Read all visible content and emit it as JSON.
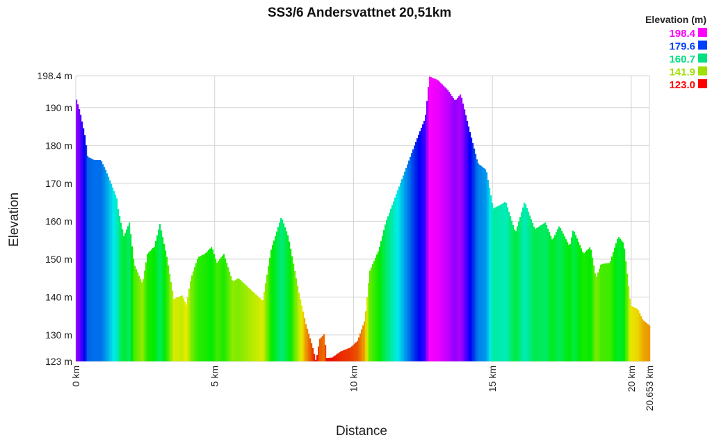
{
  "chart_data": {
    "type": "area",
    "title": "SS3/6 Andersvattnet 20,51km",
    "xlabel": "Distance",
    "ylabel": "Elevation",
    "xlim": [
      0,
      20.653
    ],
    "ylim": [
      123,
      198.4
    ],
    "grid": true,
    "x_ticks": [
      {
        "value": 0,
        "label": "0 km"
      },
      {
        "value": 5,
        "label": "5 km"
      },
      {
        "value": 10,
        "label": "10 km"
      },
      {
        "value": 15,
        "label": "15 km"
      },
      {
        "value": 20,
        "label": "20 km"
      },
      {
        "value": 20.653,
        "label": "20.653 km"
      }
    ],
    "y_ticks": [
      {
        "value": 123,
        "label": "123 m"
      },
      {
        "value": 130,
        "label": "130 m"
      },
      {
        "value": 140,
        "label": "140 m"
      },
      {
        "value": 150,
        "label": "150 m"
      },
      {
        "value": 160,
        "label": "160 m"
      },
      {
        "value": 170,
        "label": "170 m"
      },
      {
        "value": 180,
        "label": "180 m"
      },
      {
        "value": 190,
        "label": "190 m"
      },
      {
        "value": 198.4,
        "label": "198.4 m"
      }
    ],
    "legend": {
      "title": "Elevation (m)",
      "placement": "top-right",
      "entries": [
        {
          "label": "198.4",
          "value": 198.4,
          "color": "#ff00ff"
        },
        {
          "label": "179.6",
          "value": 179.6,
          "color": "#0040ff"
        },
        {
          "label": "160.7",
          "value": 160.7,
          "color": "#00e080"
        },
        {
          "label": "141.9",
          "value": 141.9,
          "color": "#a0e000"
        },
        {
          "label": "123.0",
          "value": 123.0,
          "color": "#ff0000"
        }
      ]
    },
    "color_scale": "elevation hue: red (low) → yellow → green → cyan → blue → magenta (high)",
    "x": [
      0,
      0.15,
      0.33,
      0.43,
      0.65,
      0.9,
      1.08,
      1.28,
      1.48,
      1.53,
      1.73,
      1.93,
      2.1,
      2.4,
      2.58,
      2.83,
      3.03,
      3.28,
      3.53,
      3.83,
      3.98,
      4.15,
      4.4,
      4.65,
      4.9,
      5.08,
      5.33,
      5.65,
      5.85,
      6.73,
      7.03,
      7.4,
      7.65,
      8.03,
      8.28,
      8.53,
      8.65,
      8.78,
      8.95,
      9.03,
      9.23,
      9.53,
      9.9,
      10.15,
      10.41,
      10.58,
      10.91,
      11.16,
      11.53,
      11.91,
      12.28,
      12.58,
      12.73,
      13.03,
      13.4,
      13.66,
      13.86,
      14.16,
      14.48,
      14.78,
      15.03,
      15.28,
      15.48,
      15.83,
      16.16,
      16.53,
      16.91,
      17.16,
      17.41,
      17.78,
      17.91,
      18.28,
      18.53,
      18.73,
      18.91,
      19.23,
      19.53,
      19.73,
      19.98,
      20.24,
      20.41,
      20.653
    ],
    "y": [
      192.7,
      189,
      182.6,
      177,
      176.2,
      176.2,
      173.5,
      169.8,
      166,
      163,
      156,
      159.7,
      148.7,
      143.5,
      151.4,
      153.3,
      159.3,
      150.5,
      139.5,
      140.4,
      138,
      145,
      150.5,
      151.4,
      153.3,
      149,
      151.4,
      144,
      145,
      139,
      152.4,
      161.2,
      156,
      141.3,
      133,
      126.7,
      123,
      128.9,
      130.3,
      123.9,
      124,
      125.6,
      126.7,
      128.5,
      134,
      146.8,
      152.4,
      159.7,
      167,
      174.4,
      181.7,
      187.2,
      198.2,
      197.3,
      194.6,
      191.8,
      193.6,
      184.5,
      175.3,
      173.5,
      163.4,
      164.3,
      165.2,
      157,
      165.2,
      157.9,
      159.7,
      155,
      158.8,
      153.3,
      157.9,
      151.4,
      153.3,
      145,
      148.7,
      149,
      156,
      154.2,
      137.7,
      136.8,
      134,
      132.5
    ]
  }
}
